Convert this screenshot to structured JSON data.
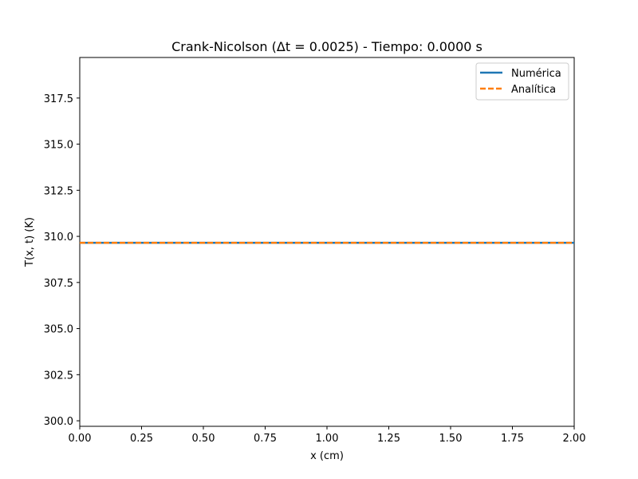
{
  "chart_data": {
    "type": "line",
    "title": "Crank-Nicolson (Δt = 0.0025) - Tiempo: 0.0000 s",
    "xlabel": "x (cm)",
    "ylabel": "T(x, t) (K)",
    "xlim": [
      0.0,
      2.0
    ],
    "ylim": [
      299.7,
      319.7
    ],
    "xticks": [
      "0.00",
      "0.25",
      "0.50",
      "0.75",
      "1.00",
      "1.25",
      "1.50",
      "1.75",
      "2.00"
    ],
    "yticks": [
      "300.0",
      "302.5",
      "305.0",
      "307.5",
      "310.0",
      "312.5",
      "315.0",
      "317.5"
    ],
    "grid": false,
    "legend_position": "top-right",
    "series": [
      {
        "name": "Numérica",
        "color": "#1f77b4",
        "style": "solid",
        "x": [
          0.0,
          2.0
        ],
        "y": [
          309.65,
          309.65
        ]
      },
      {
        "name": "Analítica",
        "color": "#ff7f0e",
        "style": "dashed",
        "x": [
          0.0,
          2.0
        ],
        "y": [
          309.65,
          309.65
        ]
      }
    ]
  }
}
